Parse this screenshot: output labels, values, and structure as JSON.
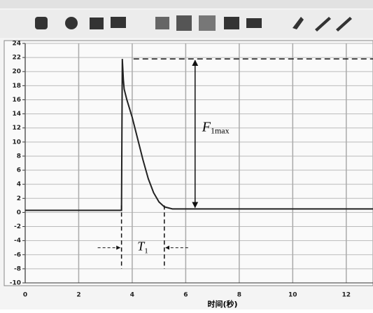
{
  "chart_data": {
    "type": "line",
    "x_label": "时间(秒)",
    "x": [
      0,
      3.55,
      3.6,
      3.63,
      3.67,
      3.7,
      3.8,
      4.0,
      4.2,
      4.4,
      4.6,
      4.8,
      5.0,
      5.2,
      5.5,
      6,
      8,
      10,
      12,
      13
    ],
    "series": [
      {
        "color": "#222222",
        "values": [
          0.3,
          0.3,
          0.3,
          21.8,
          18.8,
          17.5,
          16,
          13.5,
          10.5,
          7.5,
          4.8,
          2.8,
          1.5,
          0.8,
          0.5,
          0.5,
          0.5,
          0.5,
          0.5,
          0.5
        ]
      }
    ],
    "xlim": [
      0,
      13
    ],
    "ylim": [
      -10,
      24
    ],
    "xticks": [
      0,
      2,
      4,
      6,
      8,
      10,
      12
    ],
    "yticks": [
      24,
      22,
      20,
      18,
      16,
      14,
      12,
      10,
      8,
      6,
      4,
      2,
      0,
      -2,
      -4,
      -6,
      -8,
      -10
    ],
    "grid": true,
    "annotations": {
      "force": {
        "text": "F",
        "sub": "1max",
        "x": 6.35
      },
      "time": {
        "text": "T",
        "sub": "1"
      }
    }
  }
}
